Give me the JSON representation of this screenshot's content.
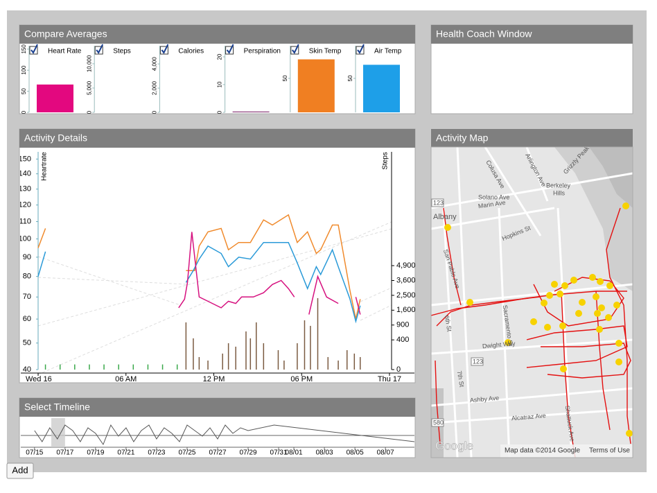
{
  "compare_averages": {
    "title": "Compare Averages",
    "charts": [
      {
        "type": "bar",
        "label": "Heart Rate",
        "checked": true,
        "value": 66,
        "color": "#e3087f",
        "ylim": [
          0,
          158
        ],
        "yticks": [
          0,
          50,
          100,
          150
        ]
      },
      {
        "type": "bar",
        "label": "Steps",
        "checked": true,
        "value": 0,
        "ylim": [
          0,
          13700
        ],
        "yticks": [
          0,
          {
            "value": 5000,
            "label": "5,000"
          },
          {
            "value": 10000,
            "label": "10,000"
          }
        ]
      },
      {
        "type": "bar",
        "label": "Calories",
        "checked": true,
        "value": 0,
        "ylim": [
          0,
          5500
        ],
        "yticks": [
          0,
          {
            "value": 2000,
            "label": "2,000"
          },
          {
            "value": 4000,
            "label": "4,000"
          }
        ]
      },
      {
        "type": "bar",
        "label": "Perspiration",
        "checked": true,
        "value": 0.3,
        "color": "#8a3a7a",
        "ylim": [
          0,
          24
        ],
        "yticks": [
          0,
          10,
          20
        ]
      },
      {
        "type": "bar",
        "label": "Skin Temp",
        "checked": true,
        "value": 78,
        "color": "#f07f22",
        "ylim": [
          0,
          98
        ],
        "yticks": [
          50
        ]
      },
      {
        "type": "bar",
        "label": "Air Temp",
        "checked": true,
        "value": 70,
        "color": "#1e9fe8",
        "ylim": [
          0,
          98
        ],
        "yticks": [
          50
        ]
      }
    ]
  },
  "health_coach": {
    "title": "Health Coach Window"
  },
  "activity_details": {
    "title": "Activity Details",
    "chart": {
      "type": "line",
      "y_label": "Heartrate",
      "y2_label": "Steps",
      "xlim": [
        0,
        24
      ],
      "xticks": [
        {
          "value": 0,
          "label": "Wed 16"
        },
        {
          "value": 6,
          "label": "06 AM"
        },
        {
          "value": 12,
          "label": "12 PM"
        },
        {
          "value": 18,
          "label": "06 PM"
        },
        {
          "value": 24,
          "label": "Thu 17"
        }
      ],
      "ylim": [
        40,
        155
      ],
      "y_scale": "sqrt",
      "yticks": [
        40,
        50,
        60,
        70,
        80,
        90,
        100,
        110,
        120,
        130,
        140,
        150
      ],
      "y2lim": [
        0,
        21500
      ],
      "y2_scale": "sqrt",
      "y2ticks": [
        0,
        400,
        900,
        {
          "value": 1600,
          "label": "1,600"
        },
        {
          "value": 2500,
          "label": "2,500"
        },
        {
          "value": 3600,
          "label": "3,600"
        },
        {
          "value": 4900,
          "label": "4,900"
        }
      ],
      "series": [
        {
          "color": "#f08a2c",
          "x": [
            0,
            0.5,
            null,
            10.1,
            10.7,
            11.0,
            11.6,
            12.5,
            13.0,
            13.7,
            14.5,
            15.4,
            16.0,
            17.1,
            17.7,
            18.4,
            19.0,
            19.3,
            20.1,
            20.5,
            21.3,
            21.7,
            22.0
          ],
          "values": [
            95,
            106,
            null,
            83,
            83,
            96,
            104,
            106,
            94,
            98,
            98,
            111,
            108,
            114,
            98,
            104,
            92,
            94,
            108,
            108,
            73,
            60,
            69
          ]
        },
        {
          "color": "#2a9ad8",
          "x": [
            0,
            0.5,
            null,
            10.1,
            10.6,
            11.0,
            11.6,
            12.5,
            13.0,
            13.7,
            14.5,
            15.4,
            16.0,
            17.1,
            17.7,
            18.4,
            19.0,
            19.3,
            20.1,
            20.5,
            21.3,
            21.7,
            22.0
          ],
          "values": [
            80,
            93,
            null,
            77,
            83,
            89,
            96,
            92,
            85,
            90,
            89,
            98,
            98,
            98,
            87,
            74,
            85,
            81,
            94,
            85,
            69,
            59,
            66
          ]
        },
        {
          "color": "#d6117f",
          "x": [
            9.6,
            10.0,
            10.2,
            10.5,
            11.0,
            11.6,
            12.5,
            13.0,
            13.5,
            13.9,
            14.7,
            15.4,
            16.0,
            16.6,
            17.1,
            17.5,
            null,
            18.5,
            19.1,
            19.7,
            20.5,
            null,
            21.7,
            22.0
          ],
          "values": [
            65,
            69,
            77,
            104,
            70,
            68,
            65,
            68,
            67,
            70,
            70,
            72,
            76,
            78,
            74,
            70,
            null,
            62,
            80,
            70,
            67,
            null,
            70,
            62
          ]
        },
        {
          "type": "bar",
          "axis": "y2",
          "color": "#7a5a40",
          "x": [
            10.1,
            10.6,
            11.0,
            11.6,
            12.6,
            13.0,
            13.5,
            14.2,
            14.5,
            14.9,
            15.4,
            16.4,
            16.8,
            17.7,
            18.2,
            18.6,
            19.1,
            19.8,
            20.5,
            21.1,
            21.6,
            22.0
          ],
          "values": [
            1010,
            442,
            71,
            37,
            116,
            315,
            238,
            660,
            442,
            1010,
            315,
            171,
            37,
            315,
            1101,
            867,
            2317,
            71,
            37,
            171,
            116,
            71
          ]
        },
        {
          "type": "bar",
          "axis": "y2",
          "color": "#3aa84a",
          "x": [
            0.5,
            1.5,
            2.5,
            3.5,
            4.5,
            5.5,
            6.5,
            7.5,
            8.5,
            9.5
          ],
          "values": [
            12,
            12,
            12,
            12,
            12,
            12,
            12,
            12,
            12,
            12
          ]
        }
      ]
    }
  },
  "timeline": {
    "title": "Select Timeline",
    "chart": {
      "type": "line",
      "color": "#555555",
      "xlim": [
        -0.9,
        24.9
      ],
      "ylim": [
        0,
        10
      ],
      "xticks": [
        {
          "value": 0,
          "label": "07/15"
        },
        {
          "value": 2,
          "label": "07/17"
        },
        {
          "value": 4,
          "label": "07/19"
        },
        {
          "value": 6,
          "label": "07/21"
        },
        {
          "value": 8,
          "label": "07/23"
        },
        {
          "value": 10,
          "label": "07/25"
        },
        {
          "value": 12,
          "label": "07/27"
        },
        {
          "value": 14,
          "label": "07/29"
        },
        {
          "value": 16,
          "label": "07/31"
        },
        {
          "value": 17,
          "label": "08/01"
        },
        {
          "value": 19,
          "label": "08/03"
        },
        {
          "value": 21,
          "label": "08/05"
        },
        {
          "value": 23,
          "label": "08/07"
        }
      ],
      "x": [
        0,
        0.5,
        1,
        1.5,
        2,
        2.5,
        3,
        3.5,
        4,
        4.5,
        5,
        5.5,
        6,
        6.5,
        7,
        7.5,
        8,
        8.5,
        9,
        9.5,
        10,
        10.5,
        11,
        11.5,
        12,
        12.5,
        13,
        13.5,
        14,
        15.7,
        24.9
      ],
      "values": [
        6,
        2,
        7,
        3,
        8,
        6,
        2,
        7,
        5,
        1,
        8,
        4,
        7,
        2,
        6,
        8,
        3,
        7,
        5,
        2,
        8,
        6,
        4,
        7,
        3,
        8,
        5,
        7,
        6,
        8,
        2
      ],
      "brush": [
        1.1,
        2.0
      ]
    }
  },
  "map": {
    "title": "Activity Map",
    "labels": [
      "Solano Ave",
      "Marin Ave",
      "Berkeley",
      "Hills",
      "Albany",
      "Hopkins St",
      "Colusa Ave",
      "Arlington Ave",
      "Grizzly Peak Blvd",
      "San Pablo Ave",
      "Dwight Way",
      "Ashby Ave",
      "Alcatraz Ave",
      "Sacramento St",
      "7th St",
      "6th St",
      "Shattuck Ave",
      "123",
      "123",
      "580"
    ],
    "logo": "Google",
    "attribution": "Map data ©2014 Google",
    "terms": "Terms of Use"
  },
  "add_button": "Add"
}
